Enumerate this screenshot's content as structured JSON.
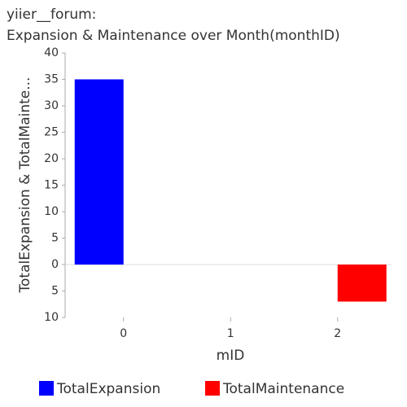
{
  "chart_data": {
    "type": "bar",
    "title": "yiier__forum:",
    "subtitle": "Expansion & Maintenance over Month(monthID)",
    "x_label": "mID",
    "y_label": "TotalExpansion & TotalMainte...",
    "categories": [
      "0",
      "1",
      "2"
    ],
    "series": [
      {
        "name": "TotalExpansion",
        "color": "#0000ff",
        "values": [
          35,
          null,
          null
        ]
      },
      {
        "name": "TotalMaintenance",
        "color": "#ff0000",
        "values": [
          null,
          null,
          -7
        ]
      }
    ],
    "ylim": [
      -10,
      40
    ],
    "yticks": [
      {
        "value": -10,
        "label": "10"
      },
      {
        "value": -5,
        "label": "5"
      },
      0,
      5,
      10,
      15,
      20,
      25,
      30,
      35,
      40
    ],
    "grid": false,
    "legend": "bottom"
  }
}
